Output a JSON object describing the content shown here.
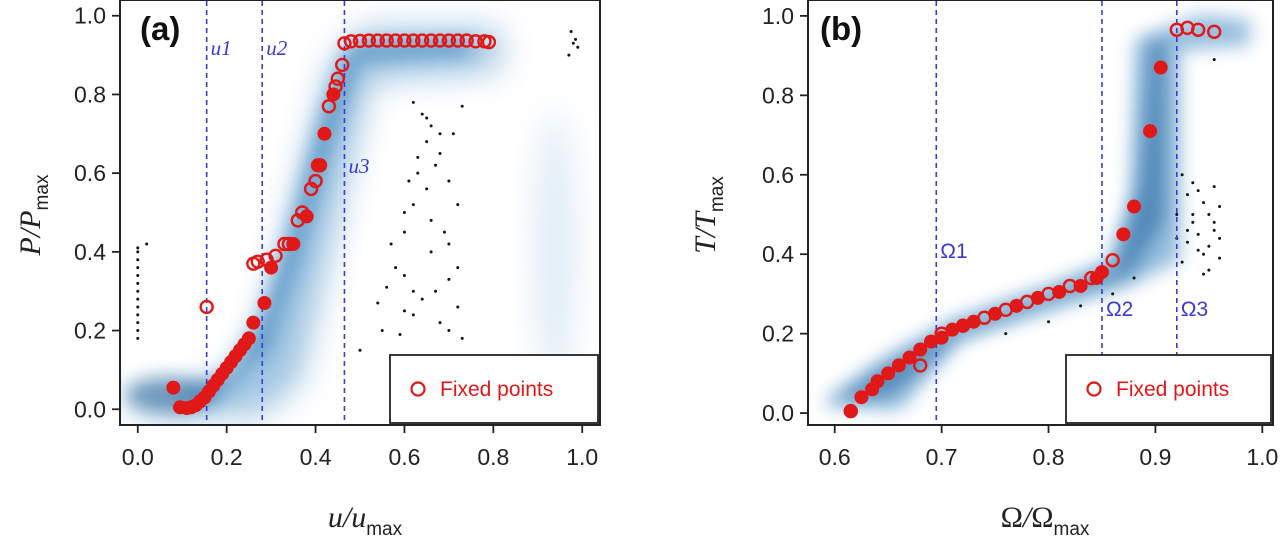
{
  "colors": {
    "marker": "#e01818",
    "guide": "#3b3bd4",
    "density": "#1f6fb0",
    "scatter": "#111111",
    "frame": "#222222"
  },
  "legend_label": "Fixed points",
  "chart_data": [
    {
      "type": "scatter",
      "panel": "(a)",
      "xlabel": {
        "var": "u",
        "sep": "/",
        "var2": "u",
        "sub": "max"
      },
      "ylabel": {
        "var": "P",
        "sep": "/",
        "var2": "P",
        "sub": "max"
      },
      "xlim": [
        -0.04,
        1.04
      ],
      "ylim": [
        -0.04,
        1.04
      ],
      "xticks": [
        "0.0",
        "0.2",
        "0.4",
        "0.6",
        "0.8",
        "1.0"
      ],
      "xtick_values": [
        0.0,
        0.2,
        0.4,
        0.6,
        0.8,
        1.0
      ],
      "yticks": [
        "0.0",
        "0.2",
        "0.4",
        "0.6",
        "0.8",
        "1.0"
      ],
      "ytick_values": [
        0.0,
        0.2,
        0.4,
        0.6,
        0.8,
        1.0
      ],
      "vlines": [
        {
          "x": 0.155,
          "label": "u1",
          "label_y": 0.9
        },
        {
          "x": 0.28,
          "label": "u2",
          "label_y": 0.9
        },
        {
          "x": 0.465,
          "label": "u3",
          "label_y": 0.6
        }
      ],
      "legend": {
        "entry": "Fixed points",
        "position": "bottom-right"
      },
      "fixed_points_open": [
        [
          0.155,
          0.26
        ],
        [
          0.26,
          0.37
        ],
        [
          0.27,
          0.375
        ],
        [
          0.29,
          0.38
        ],
        [
          0.31,
          0.39
        ],
        [
          0.34,
          0.42
        ],
        [
          0.36,
          0.48
        ],
        [
          0.39,
          0.56
        ],
        [
          0.41,
          0.62
        ],
        [
          0.43,
          0.77
        ],
        [
          0.445,
          0.82
        ],
        [
          0.45,
          0.84
        ],
        [
          0.46,
          0.875
        ],
        [
          0.465,
          0.93
        ],
        [
          0.48,
          0.935
        ],
        [
          0.5,
          0.936
        ],
        [
          0.52,
          0.937
        ],
        [
          0.54,
          0.937
        ],
        [
          0.56,
          0.937
        ],
        [
          0.58,
          0.937
        ],
        [
          0.6,
          0.937
        ],
        [
          0.62,
          0.937
        ],
        [
          0.64,
          0.937
        ],
        [
          0.66,
          0.937
        ],
        [
          0.68,
          0.937
        ],
        [
          0.7,
          0.937
        ],
        [
          0.72,
          0.937
        ],
        [
          0.74,
          0.937
        ],
        [
          0.76,
          0.935
        ],
        [
          0.78,
          0.935
        ],
        [
          0.79,
          0.933
        ],
        [
          0.33,
          0.42
        ],
        [
          0.37,
          0.5
        ],
        [
          0.4,
          0.58
        ]
      ],
      "fixed_points_filled": [
        [
          0.08,
          0.055
        ],
        [
          0.095,
          0.005
        ],
        [
          0.11,
          0.003
        ],
        [
          0.12,
          0.005
        ],
        [
          0.13,
          0.01
        ],
        [
          0.14,
          0.02
        ],
        [
          0.15,
          0.03
        ],
        [
          0.16,
          0.045
        ],
        [
          0.17,
          0.06
        ],
        [
          0.18,
          0.075
        ],
        [
          0.19,
          0.09
        ],
        [
          0.2,
          0.105
        ],
        [
          0.21,
          0.12
        ],
        [
          0.22,
          0.135
        ],
        [
          0.23,
          0.15
        ],
        [
          0.24,
          0.165
        ],
        [
          0.25,
          0.18
        ],
        [
          0.26,
          0.22
        ],
        [
          0.285,
          0.27
        ],
        [
          0.3,
          0.36
        ],
        [
          0.35,
          0.42
        ],
        [
          0.38,
          0.49
        ],
        [
          0.405,
          0.62
        ],
        [
          0.42,
          0.7
        ],
        [
          0.44,
          0.8
        ]
      ],
      "scatter_black": [
        [
          0.0,
          0.18
        ],
        [
          0.0,
          0.2
        ],
        [
          0.0,
          0.22
        ],
        [
          0.0,
          0.24
        ],
        [
          0.0,
          0.26
        ],
        [
          0.0,
          0.28
        ],
        [
          0.0,
          0.3
        ],
        [
          0.0,
          0.32
        ],
        [
          0.0,
          0.34
        ],
        [
          0.0,
          0.36
        ],
        [
          0.0,
          0.38
        ],
        [
          0.0,
          0.4
        ],
        [
          0.0,
          0.41
        ],
        [
          0.02,
          0.42
        ],
        [
          0.5,
          0.15
        ],
        [
          0.55,
          0.2
        ],
        [
          0.6,
          0.25
        ],
        [
          0.62,
          0.3
        ],
        [
          0.58,
          0.36
        ],
        [
          0.6,
          0.45
        ],
        [
          0.62,
          0.52
        ],
        [
          0.63,
          0.6
        ],
        [
          0.65,
          0.68
        ],
        [
          0.64,
          0.75
        ],
        [
          0.66,
          0.72
        ],
        [
          0.68,
          0.65
        ],
        [
          0.7,
          0.58
        ],
        [
          0.72,
          0.52
        ],
        [
          0.69,
          0.45
        ],
        [
          0.66,
          0.4
        ],
        [
          0.7,
          0.33
        ],
        [
          0.72,
          0.26
        ],
        [
          0.73,
          0.18
        ],
        [
          0.68,
          0.22
        ],
        [
          0.64,
          0.28
        ],
        [
          0.6,
          0.34
        ],
        [
          0.57,
          0.42
        ],
        [
          0.6,
          0.5
        ],
        [
          0.65,
          0.56
        ],
        [
          0.67,
          0.62
        ],
        [
          0.71,
          0.7
        ],
        [
          0.73,
          0.77
        ],
        [
          0.62,
          0.78
        ],
        [
          0.65,
          0.74
        ],
        [
          0.68,
          0.7
        ],
        [
          0.63,
          0.64
        ],
        [
          0.61,
          0.58
        ],
        [
          0.66,
          0.48
        ],
        [
          0.7,
          0.42
        ],
        [
          0.72,
          0.36
        ],
        [
          0.67,
          0.3
        ],
        [
          0.62,
          0.24
        ],
        [
          0.56,
          0.31
        ],
        [
          0.54,
          0.27
        ],
        [
          0.59,
          0.19
        ],
        [
          0.7,
          0.2
        ],
        [
          0.97,
          0.9
        ],
        [
          0.98,
          0.93
        ],
        [
          0.99,
          0.92
        ],
        [
          0.975,
          0.96
        ],
        [
          0.985,
          0.94
        ]
      ]
    },
    {
      "type": "scatter",
      "panel": "(b)",
      "xlabel": {
        "var": "Ω",
        "sep": "/",
        "var2": "Ω",
        "sub": "max"
      },
      "ylabel": {
        "var": "T",
        "sep": "/",
        "var2": "T",
        "sub": "max"
      },
      "xlim": [
        0.575,
        1.01
      ],
      "ylim": [
        -0.03,
        1.04
      ],
      "xticks": [
        "0.6",
        "0.7",
        "0.8",
        "0.9",
        "1.0"
      ],
      "xtick_values": [
        0.6,
        0.7,
        0.8,
        0.9,
        1.0
      ],
      "yticks": [
        "0.0",
        "0.2",
        "0.4",
        "0.6",
        "0.8",
        "1.0"
      ],
      "ytick_values": [
        0.0,
        0.2,
        0.4,
        0.6,
        0.8,
        1.0
      ],
      "vlines": [
        {
          "x": 0.695,
          "label": "Ω1",
          "label_y": 0.39
        },
        {
          "x": 0.85,
          "label": "Ω2",
          "label_y": 0.245
        },
        {
          "x": 0.92,
          "label": "Ω3",
          "label_y": 0.245
        }
      ],
      "legend": {
        "entry": "Fixed points",
        "position": "bottom-right"
      },
      "fixed_points_open": [
        [
          0.615,
          0.005
        ],
        [
          0.68,
          0.12
        ],
        [
          0.7,
          0.2
        ],
        [
          0.72,
          0.22
        ],
        [
          0.74,
          0.24
        ],
        [
          0.76,
          0.26
        ],
        [
          0.78,
          0.28
        ],
        [
          0.8,
          0.3
        ],
        [
          0.82,
          0.32
        ],
        [
          0.84,
          0.34
        ],
        [
          0.86,
          0.385
        ],
        [
          0.92,
          0.965
        ],
        [
          0.93,
          0.97
        ],
        [
          0.94,
          0.965
        ],
        [
          0.955,
          0.96
        ]
      ],
      "fixed_points_filled": [
        [
          0.615,
          0.005
        ],
        [
          0.625,
          0.04
        ],
        [
          0.635,
          0.06
        ],
        [
          0.64,
          0.08
        ],
        [
          0.65,
          0.1
        ],
        [
          0.66,
          0.12
        ],
        [
          0.67,
          0.14
        ],
        [
          0.68,
          0.16
        ],
        [
          0.69,
          0.18
        ],
        [
          0.7,
          0.19
        ],
        [
          0.71,
          0.21
        ],
        [
          0.72,
          0.22
        ],
        [
          0.73,
          0.23
        ],
        [
          0.75,
          0.25
        ],
        [
          0.77,
          0.27
        ],
        [
          0.79,
          0.29
        ],
        [
          0.81,
          0.305
        ],
        [
          0.83,
          0.32
        ],
        [
          0.845,
          0.34
        ],
        [
          0.85,
          0.355
        ],
        [
          0.87,
          0.45
        ],
        [
          0.88,
          0.52
        ],
        [
          0.895,
          0.71
        ],
        [
          0.905,
          0.87
        ]
      ],
      "scatter_black": [
        [
          0.76,
          0.2
        ],
        [
          0.8,
          0.23
        ],
        [
          0.83,
          0.27
        ],
        [
          0.86,
          0.3
        ],
        [
          0.88,
          0.34
        ],
        [
          0.925,
          0.6
        ],
        [
          0.93,
          0.55
        ],
        [
          0.935,
          0.5
        ],
        [
          0.94,
          0.45
        ],
        [
          0.945,
          0.4
        ],
        [
          0.95,
          0.42
        ],
        [
          0.955,
          0.48
        ],
        [
          0.96,
          0.52
        ],
        [
          0.94,
          0.56
        ],
        [
          0.93,
          0.43
        ],
        [
          0.925,
          0.38
        ],
        [
          0.95,
          0.36
        ],
        [
          0.96,
          0.44
        ],
        [
          0.935,
          0.48
        ],
        [
          0.945,
          0.53
        ],
        [
          0.955,
          0.57
        ],
        [
          0.92,
          0.5
        ],
        [
          0.93,
          0.46
        ],
        [
          0.94,
          0.41
        ],
        [
          0.95,
          0.5
        ],
        [
          0.96,
          0.39
        ],
        [
          0.92,
          0.44
        ],
        [
          0.955,
          0.46
        ],
        [
          0.935,
          0.58
        ],
        [
          0.945,
          0.35
        ],
        [
          0.955,
          0.89
        ]
      ]
    }
  ]
}
